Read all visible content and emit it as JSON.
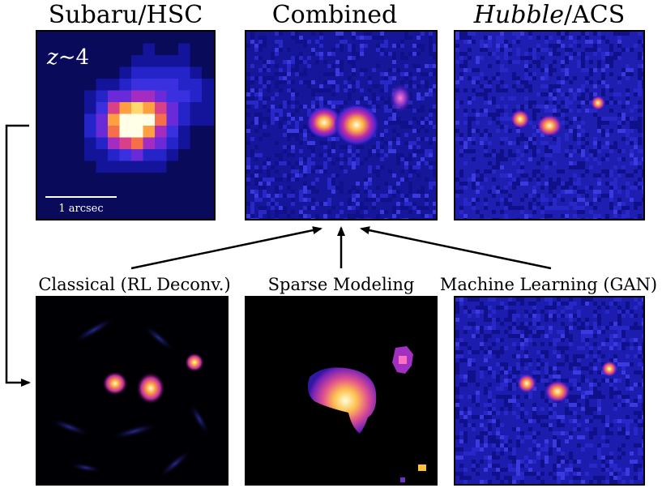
{
  "titles": {
    "hsc": "Subaru/HSC",
    "combined": "Combined",
    "hubble_italic": "Hubble",
    "hubble_rest": "/ACS"
  },
  "annotations": {
    "redshift_symbol": "z",
    "redshift_tilde": "∼",
    "redshift_value": "4",
    "scale_label": "1 arcsec"
  },
  "methods": {
    "classical": "Classical (RL Deconv.)",
    "sparse": "Sparse Modeling",
    "ml": "Machine Learning (GAN)"
  },
  "colors": {
    "background": "#ffffff",
    "panel_noise": "#1a1aa0",
    "panel_black": "#000000",
    "hot": "#ffffe0",
    "arrow": "#000000"
  }
}
